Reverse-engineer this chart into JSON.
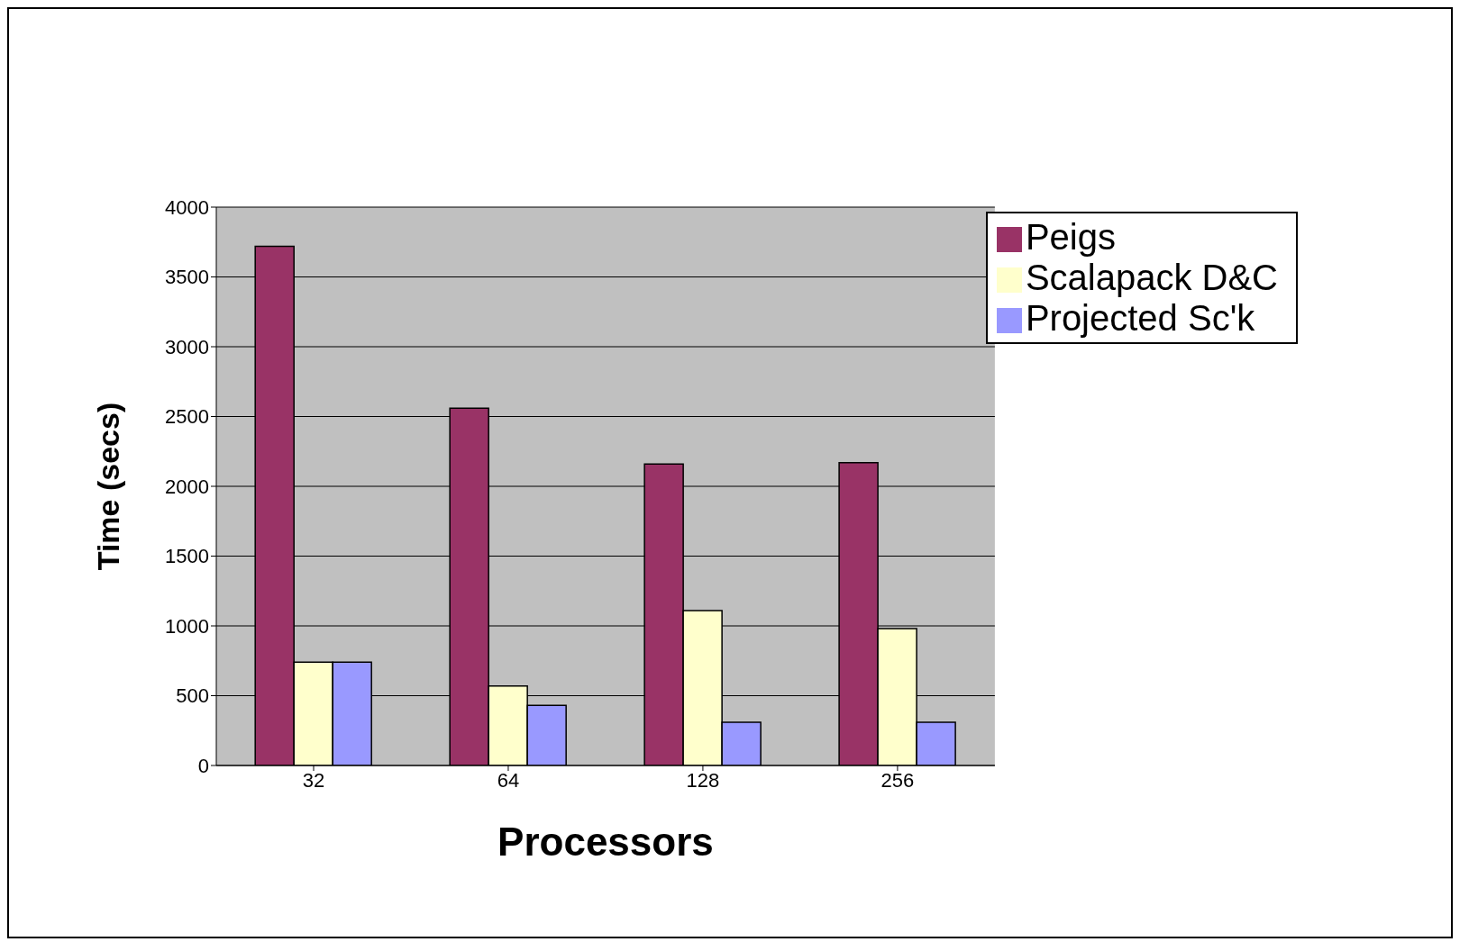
{
  "chart_data": {
    "type": "bar",
    "xlabel": "Processors",
    "ylabel": "Time (secs)",
    "categories": [
      "32",
      "64",
      "128",
      "256"
    ],
    "series": [
      {
        "name": "Peigs",
        "color": "#993366",
        "values": [
          3720,
          2560,
          2160,
          2170
        ]
      },
      {
        "name": "Scalapack D&C",
        "color": "#ffffcc",
        "values": [
          740,
          570,
          1110,
          980
        ]
      },
      {
        "name": "Projected Sc'k",
        "color": "#9999ff",
        "values": [
          740,
          430,
          310,
          310
        ]
      }
    ],
    "ylim": [
      0,
      4000
    ],
    "yticks": [
      0,
      500,
      1000,
      1500,
      2000,
      2500,
      3000,
      3500,
      4000
    ],
    "grid": "y",
    "legend": "top right"
  }
}
